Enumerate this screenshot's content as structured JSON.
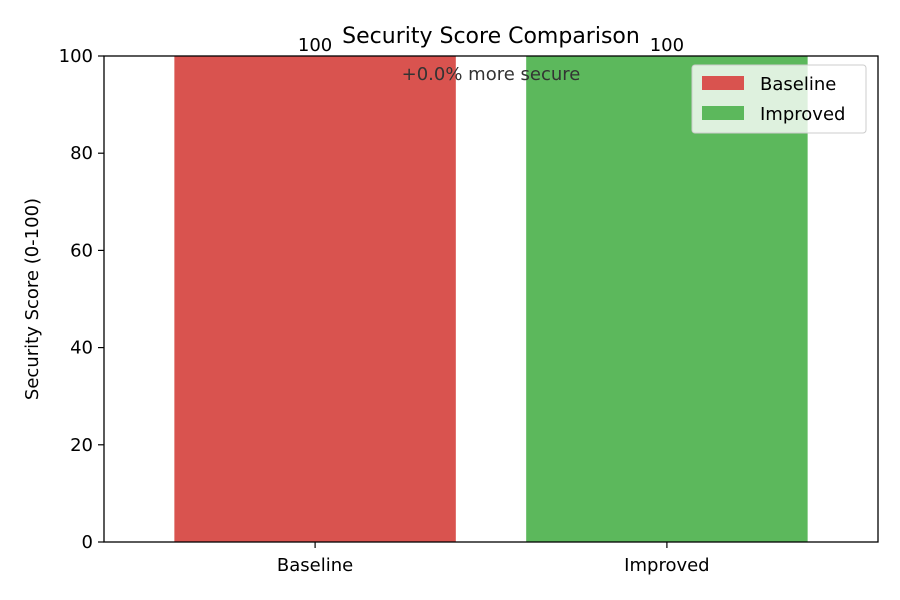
{
  "chart_data": {
    "type": "bar",
    "title": "Security Score Comparison",
    "xlabel": "",
    "ylabel": "Security Score (0-100)",
    "categories": [
      "Baseline",
      "Improved"
    ],
    "values": [
      100,
      100
    ],
    "value_labels": [
      "100",
      "100"
    ],
    "colors": [
      "#d9534f",
      "#5cb85c"
    ],
    "ylim": [
      0,
      100
    ],
    "yticks": [
      0,
      20,
      40,
      60,
      80,
      100
    ],
    "grid": false,
    "annotation": "+0.0% more secure",
    "legend": {
      "placement": "top-right",
      "entries": [
        {
          "label": "Baseline",
          "color": "#d9534f"
        },
        {
          "label": "Improved",
          "color": "#5cb85c"
        }
      ]
    }
  }
}
